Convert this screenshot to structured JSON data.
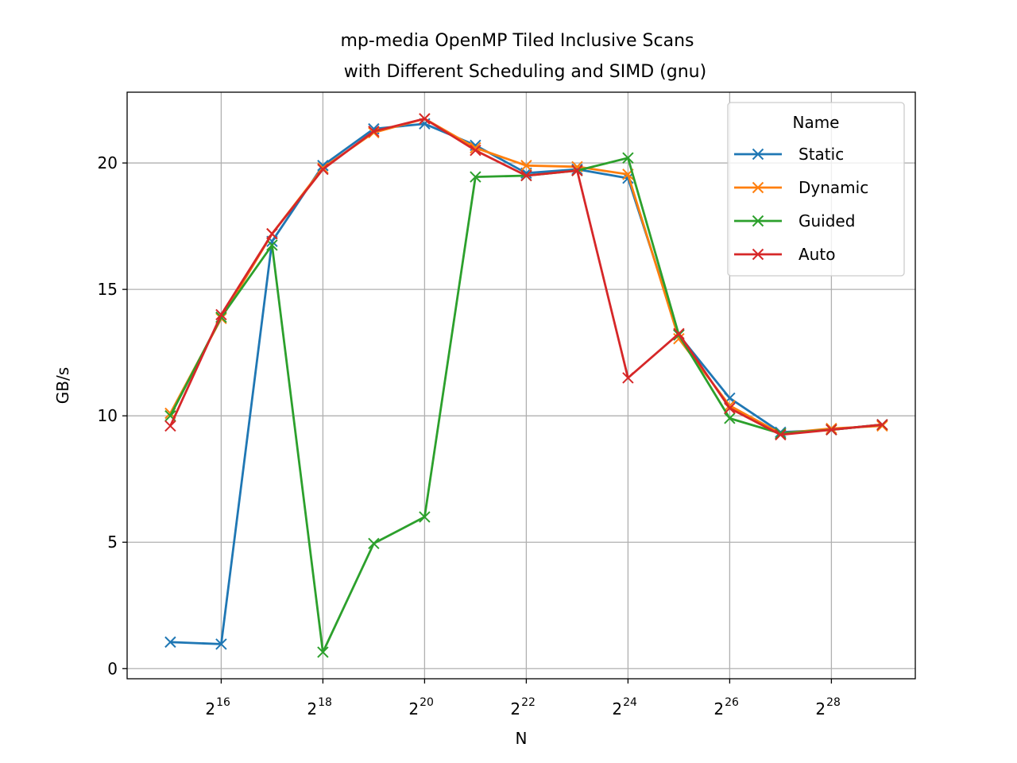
{
  "chart_data": {
    "type": "line",
    "title": "mp-media OpenMP Tiled Inclusive Scans",
    "subtitle": "with Different Scheduling and SIMD (gnu)",
    "xlabel": "N",
    "ylabel": "GB/s",
    "x_scale": "log2",
    "x": [
      32768,
      65536,
      131072,
      262144,
      524288,
      1048576,
      2097152,
      4194304,
      8388608,
      16777216,
      33554432,
      67108864,
      134217728,
      268435456,
      536870912
    ],
    "x_tick_labels": [
      {
        "base": "2",
        "exp": "16",
        "value": 65536
      },
      {
        "base": "2",
        "exp": "18",
        "value": 262144
      },
      {
        "base": "2",
        "exp": "20",
        "value": 1048576
      },
      {
        "base": "2",
        "exp": "22",
        "value": 4194304
      },
      {
        "base": "2",
        "exp": "24",
        "value": 16777216
      },
      {
        "base": "2",
        "exp": "26",
        "value": 67108864
      },
      {
        "base": "2",
        "exp": "28",
        "value": 268435456
      }
    ],
    "xlim_exp": [
      14.15,
      29.65
    ],
    "ylim": [
      -0.4,
      22.8
    ],
    "y_ticks": [
      0,
      5,
      10,
      15,
      20
    ],
    "grid": true,
    "legend": {
      "title": "Name",
      "placement": "top-right"
    },
    "series": [
      {
        "name": "Static",
        "color": "#1f77b4",
        "values": [
          1.05,
          0.97,
          16.9,
          19.9,
          21.35,
          21.55,
          20.7,
          19.6,
          19.75,
          19.4,
          13.2,
          10.7,
          9.35,
          9.45,
          9.65
        ]
      },
      {
        "name": "Dynamic",
        "color": "#ff7f0e",
        "values": [
          10.1,
          13.85,
          17.2,
          19.8,
          21.2,
          21.75,
          20.6,
          19.9,
          19.85,
          19.55,
          13.05,
          10.4,
          9.3,
          9.5,
          9.6
        ]
      },
      {
        "name": "Guided",
        "color": "#2ca02c",
        "values": [
          10.0,
          13.9,
          16.75,
          0.65,
          4.95,
          6.0,
          19.45,
          19.5,
          19.7,
          20.2,
          13.2,
          9.9,
          9.3,
          9.45,
          9.65
        ]
      },
      {
        "name": "Auto",
        "color": "#d62728",
        "values": [
          9.6,
          14.0,
          17.2,
          19.75,
          21.25,
          21.75,
          20.5,
          19.5,
          19.7,
          11.5,
          13.25,
          10.3,
          9.25,
          9.45,
          9.65
        ]
      }
    ]
  }
}
